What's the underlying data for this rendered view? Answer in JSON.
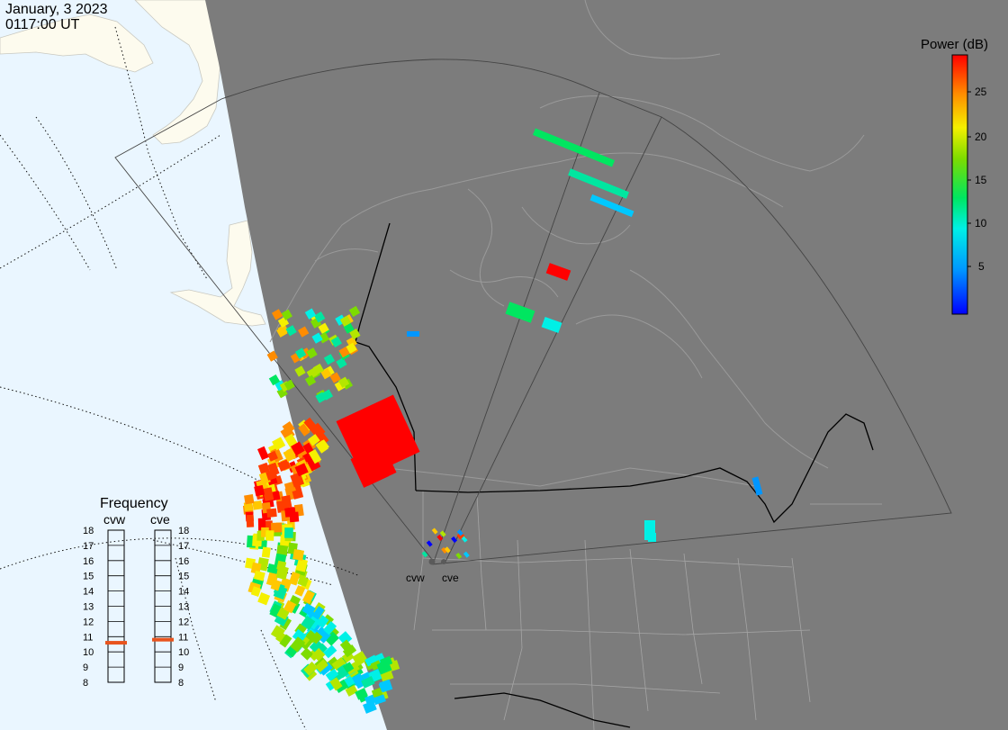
{
  "header": {
    "date": "January, 3 2023",
    "time": "0117:00 UT"
  },
  "colorbar": {
    "title": "Power (dB)",
    "ticks": [
      "25",
      "20",
      "15",
      "10",
      "5"
    ]
  },
  "frequency_panel": {
    "title": "Frequency",
    "stations": [
      {
        "code": "cvw",
        "selected_mhz": 10.6
      },
      {
        "code": "cve",
        "selected_mhz": 10.8
      }
    ],
    "scale": [
      "18",
      "17",
      "16",
      "15",
      "14",
      "13",
      "12",
      "11",
      "10",
      "9",
      "8"
    ]
  },
  "radar_labels": [
    "cvw",
    "cve"
  ],
  "colors": {
    "night": "#7c7c7c",
    "ocean_day": "#eaf6ff",
    "land_day": "#fdfbee",
    "indicator": "#e8541e"
  }
}
